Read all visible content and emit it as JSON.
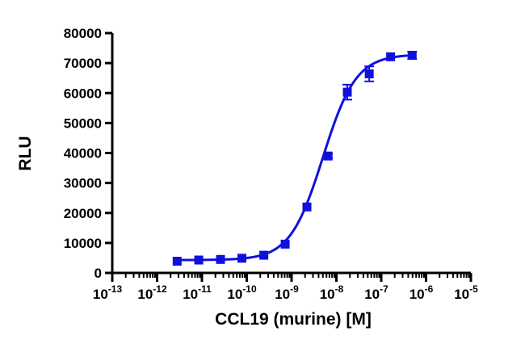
{
  "chart_data": {
    "type": "scatter",
    "xlabel": "CCL19 (murine) [M]",
    "ylabel": "RLU",
    "x_scale": "log",
    "xlim": [
      1e-13,
      1e-05
    ],
    "ylim": [
      0,
      80000
    ],
    "x_ticks": [
      {
        "base": "10",
        "exp": "-13"
      },
      {
        "base": "10",
        "exp": "-12"
      },
      {
        "base": "10",
        "exp": "-11"
      },
      {
        "base": "10",
        "exp": "-10"
      },
      {
        "base": "10",
        "exp": "-9"
      },
      {
        "base": "10",
        "exp": "-8"
      },
      {
        "base": "10",
        "exp": "-7"
      },
      {
        "base": "10",
        "exp": "-6"
      },
      {
        "base": "10",
        "exp": "-5"
      }
    ],
    "y_ticks": [
      "0",
      "10000",
      "20000",
      "30000",
      "40000",
      "50000",
      "60000",
      "70000",
      "80000"
    ],
    "grid": false,
    "colors": {
      "series": "#1010dd",
      "axis": "#000000"
    },
    "series": [
      {
        "marker": "square",
        "points": [
          {
            "x": 2.8e-12,
            "y": 3900,
            "err": 200
          },
          {
            "x": 8.5e-12,
            "y": 4300,
            "err": 200
          },
          {
            "x": 2.6e-11,
            "y": 4500,
            "err": 200
          },
          {
            "x": 7.8e-11,
            "y": 4900,
            "err": 200
          },
          {
            "x": 2.4e-10,
            "y": 5900,
            "err": 300
          },
          {
            "x": 7.2e-10,
            "y": 9600,
            "err": 500
          },
          {
            "x": 2.2e-09,
            "y": 22000,
            "err": 700
          },
          {
            "x": 6.5e-09,
            "y": 39000,
            "err": 800
          },
          {
            "x": 1.75e-08,
            "y": 60300,
            "err": 2500
          },
          {
            "x": 5.4e-08,
            "y": 66400,
            "err": 2500
          },
          {
            "x": 1.62e-07,
            "y": 72100,
            "err": 500
          },
          {
            "x": 4.9e-07,
            "y": 72600,
            "err": 1200
          }
        ],
        "fit": {
          "bottom": 4300,
          "top": 72900,
          "log_ec50": -8.3,
          "hill_slope": 1.18
        }
      }
    ]
  }
}
